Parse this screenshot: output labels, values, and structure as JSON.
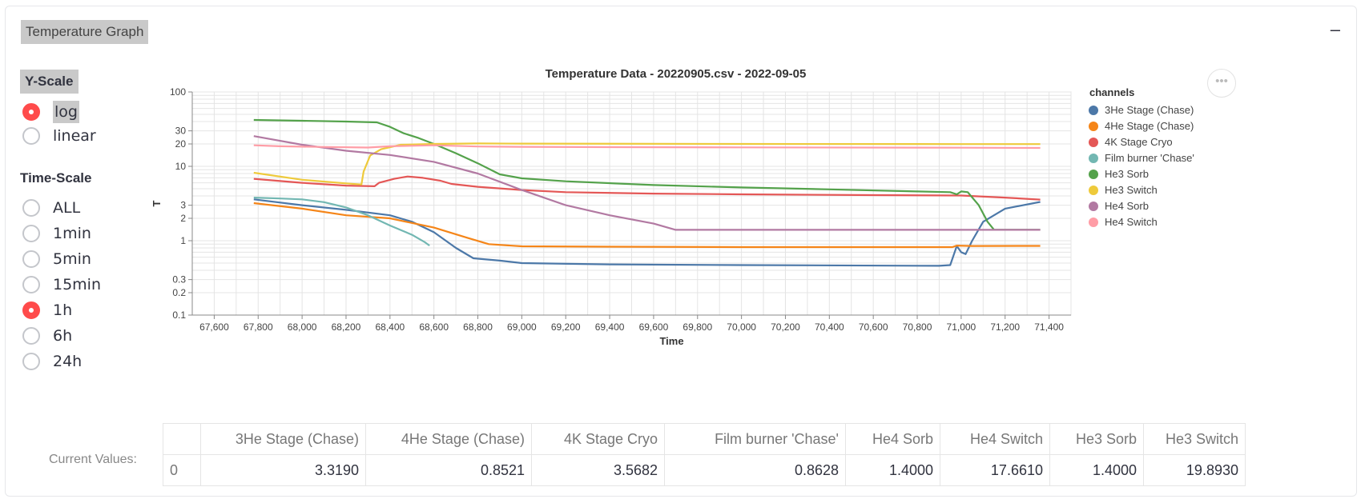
{
  "panel": {
    "title": "Temperature Graph",
    "collapse_icon": "–"
  },
  "yscale": {
    "label": "Y-Scale",
    "options": [
      "log",
      "linear"
    ],
    "selected": "log"
  },
  "timescale": {
    "label": "Time-Scale",
    "options": [
      "ALL",
      "1min",
      "5min",
      "15min",
      "1h",
      "6h",
      "24h"
    ],
    "selected": "1h"
  },
  "more_button": "•••",
  "current_values": {
    "label": "Current Values:",
    "headers": [
      "",
      "3He Stage (Chase)",
      "4He Stage (Chase)",
      "4K Stage Cryo",
      "Film burner 'Chase'",
      "He4 Sorb",
      "He4 Switch",
      "He3 Sorb",
      "He3 Switch"
    ],
    "row": [
      "0",
      "3.3190",
      "0.8521",
      "3.5682",
      "0.8628",
      "1.4000",
      "17.6610",
      "1.4000",
      "19.8930"
    ]
  },
  "chart_data": {
    "type": "line",
    "title": "Temperature Data - 20220905.csv - 2022-09-05",
    "xlabel": "Time",
    "ylabel": "T",
    "yscale": "log",
    "xlim": [
      67500,
      71500
    ],
    "ylim": [
      0.1,
      100
    ],
    "x_ticks": [
      67600,
      67800,
      68000,
      68200,
      68400,
      68600,
      68800,
      69000,
      69200,
      69400,
      69600,
      69800,
      70000,
      70200,
      70400,
      70600,
      70800,
      71000,
      71200,
      71400
    ],
    "x_tick_labels": [
      "67,600",
      "67,800",
      "68,000",
      "68,200",
      "68,400",
      "68,600",
      "68,800",
      "69,000",
      "69,200",
      "69,400",
      "69,600",
      "69,800",
      "70,000",
      "70,200",
      "70,400",
      "70,600",
      "70,800",
      "71,000",
      "71,200",
      "71,400"
    ],
    "y_ticks": [
      100,
      30,
      20,
      10,
      3,
      2,
      1,
      0.3,
      0.2,
      0.1
    ],
    "y_tick_labels": [
      "100",
      "30",
      "20",
      "10",
      "3",
      "2",
      "1",
      "0.3",
      "0.2",
      "0.1"
    ],
    "grid": true,
    "legend_title": "channels",
    "legend_position": "right",
    "series": [
      {
        "name": "3He Stage (Chase)",
        "color": "#4c78a8",
        "points": [
          [
            67780,
            3.6
          ],
          [
            68000,
            3.0
          ],
          [
            68200,
            2.6
          ],
          [
            68400,
            2.2
          ],
          [
            68500,
            1.8
          ],
          [
            68600,
            1.3
          ],
          [
            68700,
            0.8
          ],
          [
            68780,
            0.58
          ],
          [
            68900,
            0.54
          ],
          [
            69000,
            0.5
          ],
          [
            69400,
            0.48
          ],
          [
            70000,
            0.47
          ],
          [
            70900,
            0.46
          ],
          [
            70950,
            0.47
          ],
          [
            70980,
            0.85
          ],
          [
            71000,
            0.7
          ],
          [
            71020,
            0.66
          ],
          [
            71050,
            1.0
          ],
          [
            71100,
            1.8
          ],
          [
            71200,
            2.7
          ],
          [
            71360,
            3.32
          ]
        ]
      },
      {
        "name": "4He Stage (Chase)",
        "color": "#f58518",
        "points": [
          [
            67780,
            3.2
          ],
          [
            68000,
            2.7
          ],
          [
            68200,
            2.2
          ],
          [
            68400,
            2.0
          ],
          [
            68600,
            1.5
          ],
          [
            68750,
            1.1
          ],
          [
            68850,
            0.9
          ],
          [
            69000,
            0.84
          ],
          [
            69400,
            0.83
          ],
          [
            70000,
            0.82
          ],
          [
            70960,
            0.82
          ],
          [
            70980,
            0.86
          ],
          [
            71050,
            0.85
          ],
          [
            71360,
            0.852
          ]
        ]
      },
      {
        "name": "4K Stage Cryo",
        "color": "#e45756",
        "points": [
          [
            67780,
            6.8
          ],
          [
            68000,
            6.0
          ],
          [
            68200,
            5.5
          ],
          [
            68330,
            5.4
          ],
          [
            68350,
            6.0
          ],
          [
            68420,
            6.8
          ],
          [
            68480,
            7.3
          ],
          [
            68550,
            7.0
          ],
          [
            68630,
            6.4
          ],
          [
            68680,
            5.8
          ],
          [
            68800,
            5.3
          ],
          [
            69000,
            4.8
          ],
          [
            69200,
            4.5
          ],
          [
            69600,
            4.3
          ],
          [
            70000,
            4.2
          ],
          [
            70600,
            4.1
          ],
          [
            71000,
            4.05
          ],
          [
            71200,
            3.8
          ],
          [
            71360,
            3.57
          ]
        ]
      },
      {
        "name": "Film burner 'Chase'",
        "color": "#72b7b2",
        "points": [
          [
            67780,
            3.8
          ],
          [
            67900,
            3.7
          ],
          [
            68000,
            3.6
          ],
          [
            68100,
            3.3
          ],
          [
            68200,
            2.8
          ],
          [
            68300,
            2.2
          ],
          [
            68400,
            1.6
          ],
          [
            68500,
            1.2
          ],
          [
            68560,
            0.95
          ],
          [
            68580,
            0.86
          ]
        ]
      },
      {
        "name": "He3 Sorb",
        "color": "#54a24b",
        "points": [
          [
            67780,
            42
          ],
          [
            68000,
            41
          ],
          [
            68200,
            40
          ],
          [
            68340,
            39
          ],
          [
            68400,
            34
          ],
          [
            68460,
            28
          ],
          [
            68530,
            24
          ],
          [
            68600,
            20
          ],
          [
            68700,
            15
          ],
          [
            68800,
            11
          ],
          [
            68900,
            7.8
          ],
          [
            69000,
            6.9
          ],
          [
            69200,
            6.3
          ],
          [
            69600,
            5.6
          ],
          [
            70000,
            5.2
          ],
          [
            70400,
            4.9
          ],
          [
            70800,
            4.6
          ],
          [
            70950,
            4.5
          ],
          [
            70980,
            4.2
          ],
          [
            71000,
            4.6
          ],
          [
            71030,
            4.5
          ],
          [
            71080,
            3.0
          ],
          [
            71120,
            1.8
          ],
          [
            71150,
            1.4
          ],
          [
            71360,
            1.4
          ]
        ]
      },
      {
        "name": "He3 Switch",
        "color": "#eeca3b",
        "points": [
          [
            67780,
            8.2
          ],
          [
            68000,
            6.6
          ],
          [
            68200,
            5.9
          ],
          [
            68270,
            5.7
          ],
          [
            68280,
            8.5
          ],
          [
            68310,
            14
          ],
          [
            68360,
            17
          ],
          [
            68450,
            19.5
          ],
          [
            68600,
            20
          ],
          [
            68800,
            20.3
          ],
          [
            69000,
            20.2
          ],
          [
            70000,
            20
          ],
          [
            71000,
            19.9
          ],
          [
            71360,
            19.9
          ]
        ]
      },
      {
        "name": "He4 Sorb",
        "color": "#b279a2",
        "points": [
          [
            67780,
            25.5
          ],
          [
            68000,
            19.5
          ],
          [
            68200,
            16.2
          ],
          [
            68400,
            14.2
          ],
          [
            68600,
            11.5
          ],
          [
            68800,
            8.0
          ],
          [
            69000,
            4.8
          ],
          [
            69200,
            3.0
          ],
          [
            69400,
            2.2
          ],
          [
            69600,
            1.7
          ],
          [
            69700,
            1.4
          ],
          [
            70000,
            1.4
          ],
          [
            70500,
            1.4
          ],
          [
            71000,
            1.4
          ],
          [
            71360,
            1.4
          ]
        ]
      },
      {
        "name": "He4 Switch",
        "color": "#ff9da6",
        "points": [
          [
            67780,
            19.2
          ],
          [
            67900,
            18.6
          ],
          [
            68000,
            18.4
          ],
          [
            68300,
            17.9
          ],
          [
            68400,
            18.6
          ],
          [
            68600,
            19.2
          ],
          [
            68800,
            18.5
          ],
          [
            69000,
            18.3
          ],
          [
            69400,
            18.1
          ],
          [
            70000,
            18.0
          ],
          [
            71000,
            17.8
          ],
          [
            71360,
            17.66
          ]
        ]
      }
    ]
  }
}
